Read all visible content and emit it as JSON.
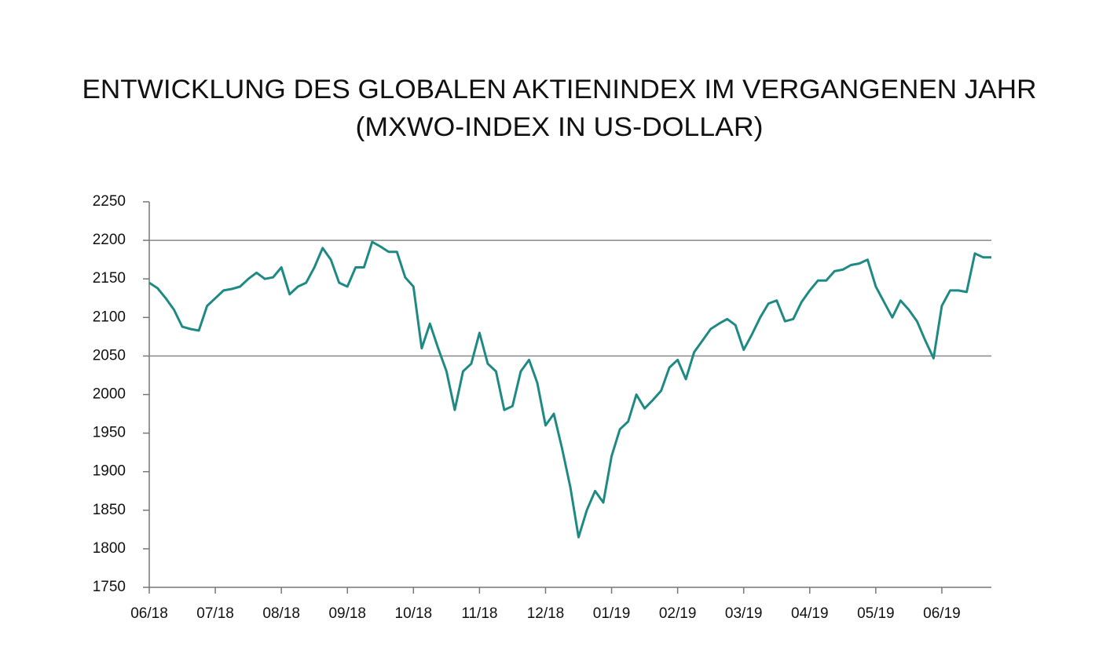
{
  "chart_data": {
    "type": "line",
    "title": "ENTWICKLUNG DES GLOBALEN AKTIENINDEX IM VERGANGENEN JAHR",
    "subtitle": "(MXWO-INDEX IN US-DOLLAR)",
    "categories": [
      "06/18",
      null,
      null,
      null,
      null,
      null,
      null,
      null,
      "07/18",
      null,
      null,
      null,
      null,
      null,
      null,
      null,
      "08/18",
      null,
      null,
      null,
      null,
      null,
      null,
      null,
      "09/18",
      null,
      null,
      null,
      null,
      null,
      null,
      null,
      "10/18",
      null,
      null,
      null,
      null,
      null,
      null,
      null,
      "11/18",
      null,
      null,
      null,
      null,
      null,
      null,
      null,
      "12/18",
      null,
      null,
      null,
      null,
      null,
      null,
      null,
      "01/19",
      null,
      null,
      null,
      null,
      null,
      null,
      null,
      "02/19",
      null,
      null,
      null,
      null,
      null,
      null,
      null,
      "03/19",
      null,
      null,
      null,
      null,
      null,
      null,
      null,
      "04/19",
      null,
      null,
      null,
      null,
      null,
      null,
      null,
      "05/19",
      null,
      null,
      null,
      null,
      null,
      null,
      null,
      "06/19",
      null,
      null,
      null,
      null,
      null,
      null
    ],
    "series": [
      {
        "name": "MXWO",
        "color": "#1f8a84",
        "values": [
          2145,
          2138,
          2125,
          2110,
          2088,
          2085,
          2083,
          2115,
          2125,
          2135,
          2137,
          2140,
          2150,
          2158,
          2150,
          2152,
          2165,
          2130,
          2140,
          2145,
          2165,
          2190,
          2175,
          2145,
          2140,
          2165,
          2165,
          2198,
          2192,
          2185,
          2185,
          2152,
          2140,
          2060,
          2092,
          2060,
          2030,
          1980,
          2030,
          2040,
          2080,
          2040,
          2030,
          1980,
          1985,
          2030,
          2045,
          2015,
          1960,
          1975,
          1930,
          1880,
          1815,
          1850,
          1875,
          1860,
          1920,
          1955,
          1965,
          2000,
          1982,
          1993,
          2005,
          2035,
          2045,
          2020,
          2055,
          2070,
          2085,
          2092,
          2098,
          2090,
          2058,
          2078,
          2100,
          2118,
          2122,
          2095,
          2098,
          2120,
          2135,
          2148,
          2148,
          2160,
          2162,
          2168,
          2170,
          2175,
          2140,
          2120,
          2100,
          2122,
          2110,
          2095,
          2070,
          2047,
          2115,
          2135,
          2135,
          2133,
          2183,
          2178,
          2178
        ]
      }
    ],
    "ylim": [
      1750,
      2250
    ],
    "yticks": [
      1750,
      1800,
      1850,
      1900,
      1950,
      2000,
      2050,
      2100,
      2150,
      2200,
      2250
    ],
    "hlines": [
      2050,
      2200
    ]
  }
}
